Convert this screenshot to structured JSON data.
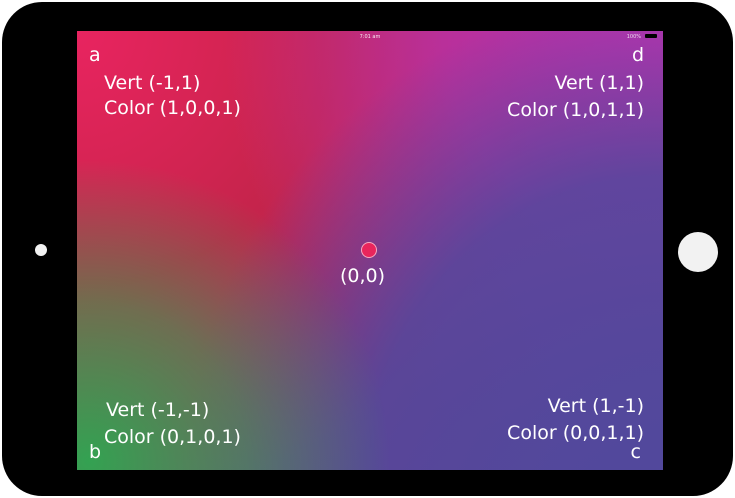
{
  "statusbar": {
    "time": "7:01 am",
    "signal": "100%"
  },
  "corners": {
    "a": {
      "letter": "a",
      "vert": "Vert (-1,1)",
      "color": "Color (1,0,0,1)"
    },
    "d": {
      "letter": "d",
      "vert": "Vert (1,1)",
      "color": "Color (1,0,1,1)"
    },
    "b": {
      "letter": "b",
      "vert": "Vert (-1,-1)",
      "color": "Color (0,1,0,1)"
    },
    "c": {
      "letter": "c",
      "vert": "Vert (1,-1)",
      "color": "Color (0,0,1,1)"
    }
  },
  "center": {
    "label": "(0,0)"
  },
  "colors": {
    "top_left": "#e8245f",
    "top_right": "#b932af",
    "bottom_left": "#2da850",
    "bottom_right": "#52489c",
    "center_dot": "#e8255c",
    "device_body": "#000000"
  }
}
